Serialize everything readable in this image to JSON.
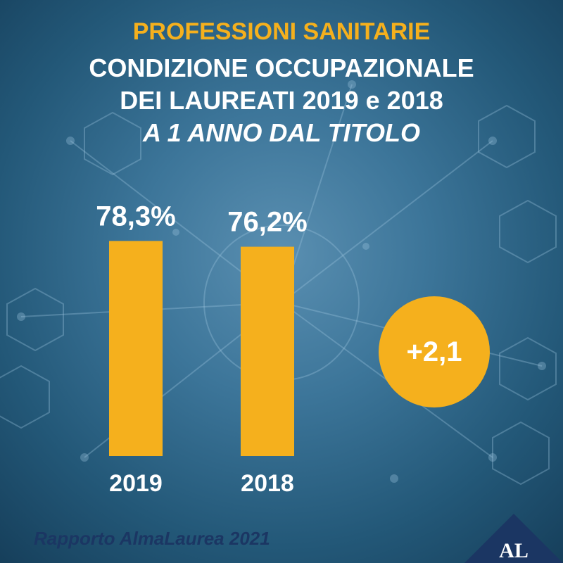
{
  "title": {
    "line1": "PROFESSIONI SANITARIE",
    "line2": "CONDIZIONE OCCUPAZIONALE",
    "line3": "DEI LAUREATI 2019 e 2018",
    "line4": "A 1 ANNO DAL TITOLO"
  },
  "chart_data": {
    "type": "bar",
    "categories": [
      "2019",
      "2018"
    ],
    "values": [
      78.3,
      76.2
    ],
    "value_labels": [
      "78,3%",
      "76,2%"
    ],
    "ylim": [
      0,
      100
    ],
    "bar_color": "#f5b01d",
    "grid": false
  },
  "difference_badge": "+2,1",
  "footer": "Rapporto AlmaLaurea 2021",
  "logo": {
    "text": "AL",
    "color": "#1b3663"
  },
  "colors": {
    "accent": "#f5b01d",
    "title_text": "#ffffff",
    "footer_text": "#1b3663"
  }
}
